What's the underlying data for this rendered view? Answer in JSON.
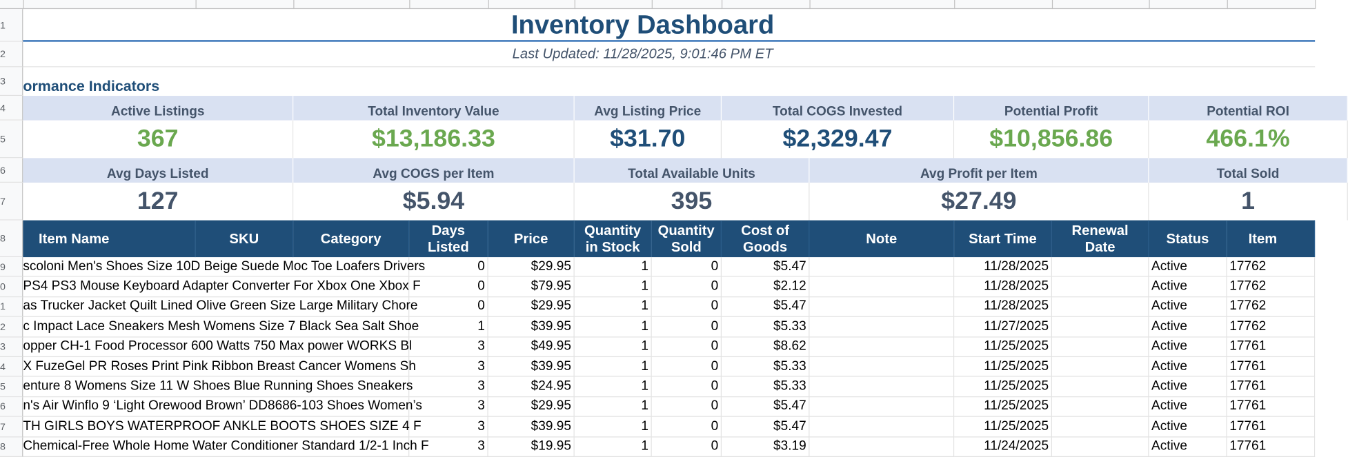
{
  "row_numbers": [
    "1",
    "2",
    "3",
    "4",
    "5",
    "6",
    "7",
    "8",
    "9",
    "0",
    "1",
    "2",
    "3",
    "4",
    "5",
    "6",
    "7",
    "8"
  ],
  "title": "Inventory Dashboard",
  "last_updated": "Last Updated: 11/28/2025, 9:01:46 PM ET",
  "section_title": "ormance Indicators",
  "kpi_rows": [
    [
      {
        "label": "Active Listings",
        "value": "367",
        "color": "#6aa84f"
      },
      {
        "label": "Total Inventory Value",
        "value": "$13,186.33",
        "color": "#6aa84f"
      },
      {
        "label": "Avg Listing Price",
        "value": "$31.70",
        "color": "#1f4e78"
      },
      {
        "label": "Total COGS Invested",
        "value": "$2,329.47",
        "color": "#1f4e78"
      },
      {
        "label": "Potential Profit",
        "value": "$10,856.86",
        "color": "#6aa84f"
      },
      {
        "label": "Potential ROI",
        "value": "466.1%",
        "color": "#6aa84f"
      }
    ],
    [
      {
        "label": "Avg Days Listed",
        "value": "127",
        "color": "#44546a"
      },
      {
        "label": "Avg COGS per Item",
        "value": "$5.94",
        "color": "#44546a"
      },
      {
        "label": "Total Available Units",
        "value": "395",
        "color": "#44546a"
      },
      {
        "label": "Avg Profit per Item",
        "value": "$27.49",
        "color": "#44546a"
      },
      {
        "label": "Total Sold",
        "value": "1",
        "color": "#44546a"
      }
    ]
  ],
  "table": {
    "columns": [
      "Item Name",
      "SKU",
      "Category",
      "Days Listed",
      "Price",
      "Quantity in Stock",
      "Quantity Sold",
      "Cost of Goods",
      "Note",
      "Start Time",
      "Renewal Date",
      "Status",
      "Item"
    ],
    "rows": [
      {
        "name": "scoloni Men's Shoes Size 10D Beige Suede Moc Toe Loafers Drivers",
        "days": "0",
        "price": "$29.95",
        "stock": "1",
        "sold": "0",
        "cogs": "$5.47",
        "start": "11/28/2025",
        "status": "Active",
        "item": "17762"
      },
      {
        "name": "PS4 PS3 Mouse Keyboard Adapter Converter For Xbox One Xbox F",
        "days": "0",
        "price": "$79.95",
        "stock": "1",
        "sold": "0",
        "cogs": "$2.12",
        "start": "11/28/2025",
        "status": "Active",
        "item": "17762"
      },
      {
        "name": "as Trucker Jacket Quilt Lined Olive Green Size Large Military Chore",
        "days": "0",
        "price": "$29.95",
        "stock": "1",
        "sold": "0",
        "cogs": "$5.47",
        "start": "11/28/2025",
        "status": "Active",
        "item": "17762"
      },
      {
        "name": "c Impact Lace Sneakers Mesh Womens Size 7 Black Sea Salt Shoe",
        "days": "1",
        "price": "$39.95",
        "stock": "1",
        "sold": "0",
        "cogs": "$5.33",
        "start": "11/27/2025",
        "status": "Active",
        "item": "17762"
      },
      {
        "name": "opper CH-1 Food Processor 600 Watts 750 Max power WORKS  Bl",
        "days": "3",
        "price": "$49.95",
        "stock": "1",
        "sold": "0",
        "cogs": "$8.62",
        "start": "11/25/2025",
        "status": "Active",
        "item": "17761"
      },
      {
        "name": "X FuzeGel PR Roses Print Pink Ribbon Breast Cancer Womens Sh",
        "days": "3",
        "price": "$39.95",
        "stock": "1",
        "sold": "0",
        "cogs": "$5.33",
        "start": "11/25/2025",
        "status": "Active",
        "item": "17761"
      },
      {
        "name": "enture 8 Womens Size 11 W Shoes Blue Running Shoes Sneakers",
        "days": "3",
        "price": "$24.95",
        "stock": "1",
        "sold": "0",
        "cogs": "$5.33",
        "start": "11/25/2025",
        "status": "Active",
        "item": "17761"
      },
      {
        "name": "n's Air Winflo 9 ‘Light Orewood Brown’ DD8686-103 Shoes Women’s",
        "days": "3",
        "price": "$29.95",
        "stock": "1",
        "sold": "0",
        "cogs": "$5.47",
        "start": "11/25/2025",
        "status": "Active",
        "item": "17761"
      },
      {
        "name": "TH GIRLS BOYS WATERPROOF ANKLE BOOTS SHOES SIZE 4 F",
        "days": "3",
        "price": "$39.95",
        "stock": "1",
        "sold": "0",
        "cogs": "$5.47",
        "start": "11/25/2025",
        "status": "Active",
        "item": "17761"
      },
      {
        "name": "Chemical-Free Whole Home Water Conditioner Standard 1/2-1 Inch F",
        "days": "3",
        "price": "$19.95",
        "stock": "1",
        "sold": "0",
        "cogs": "$3.19",
        "start": "11/24/2025",
        "status": "Active",
        "item": "17761"
      }
    ]
  }
}
